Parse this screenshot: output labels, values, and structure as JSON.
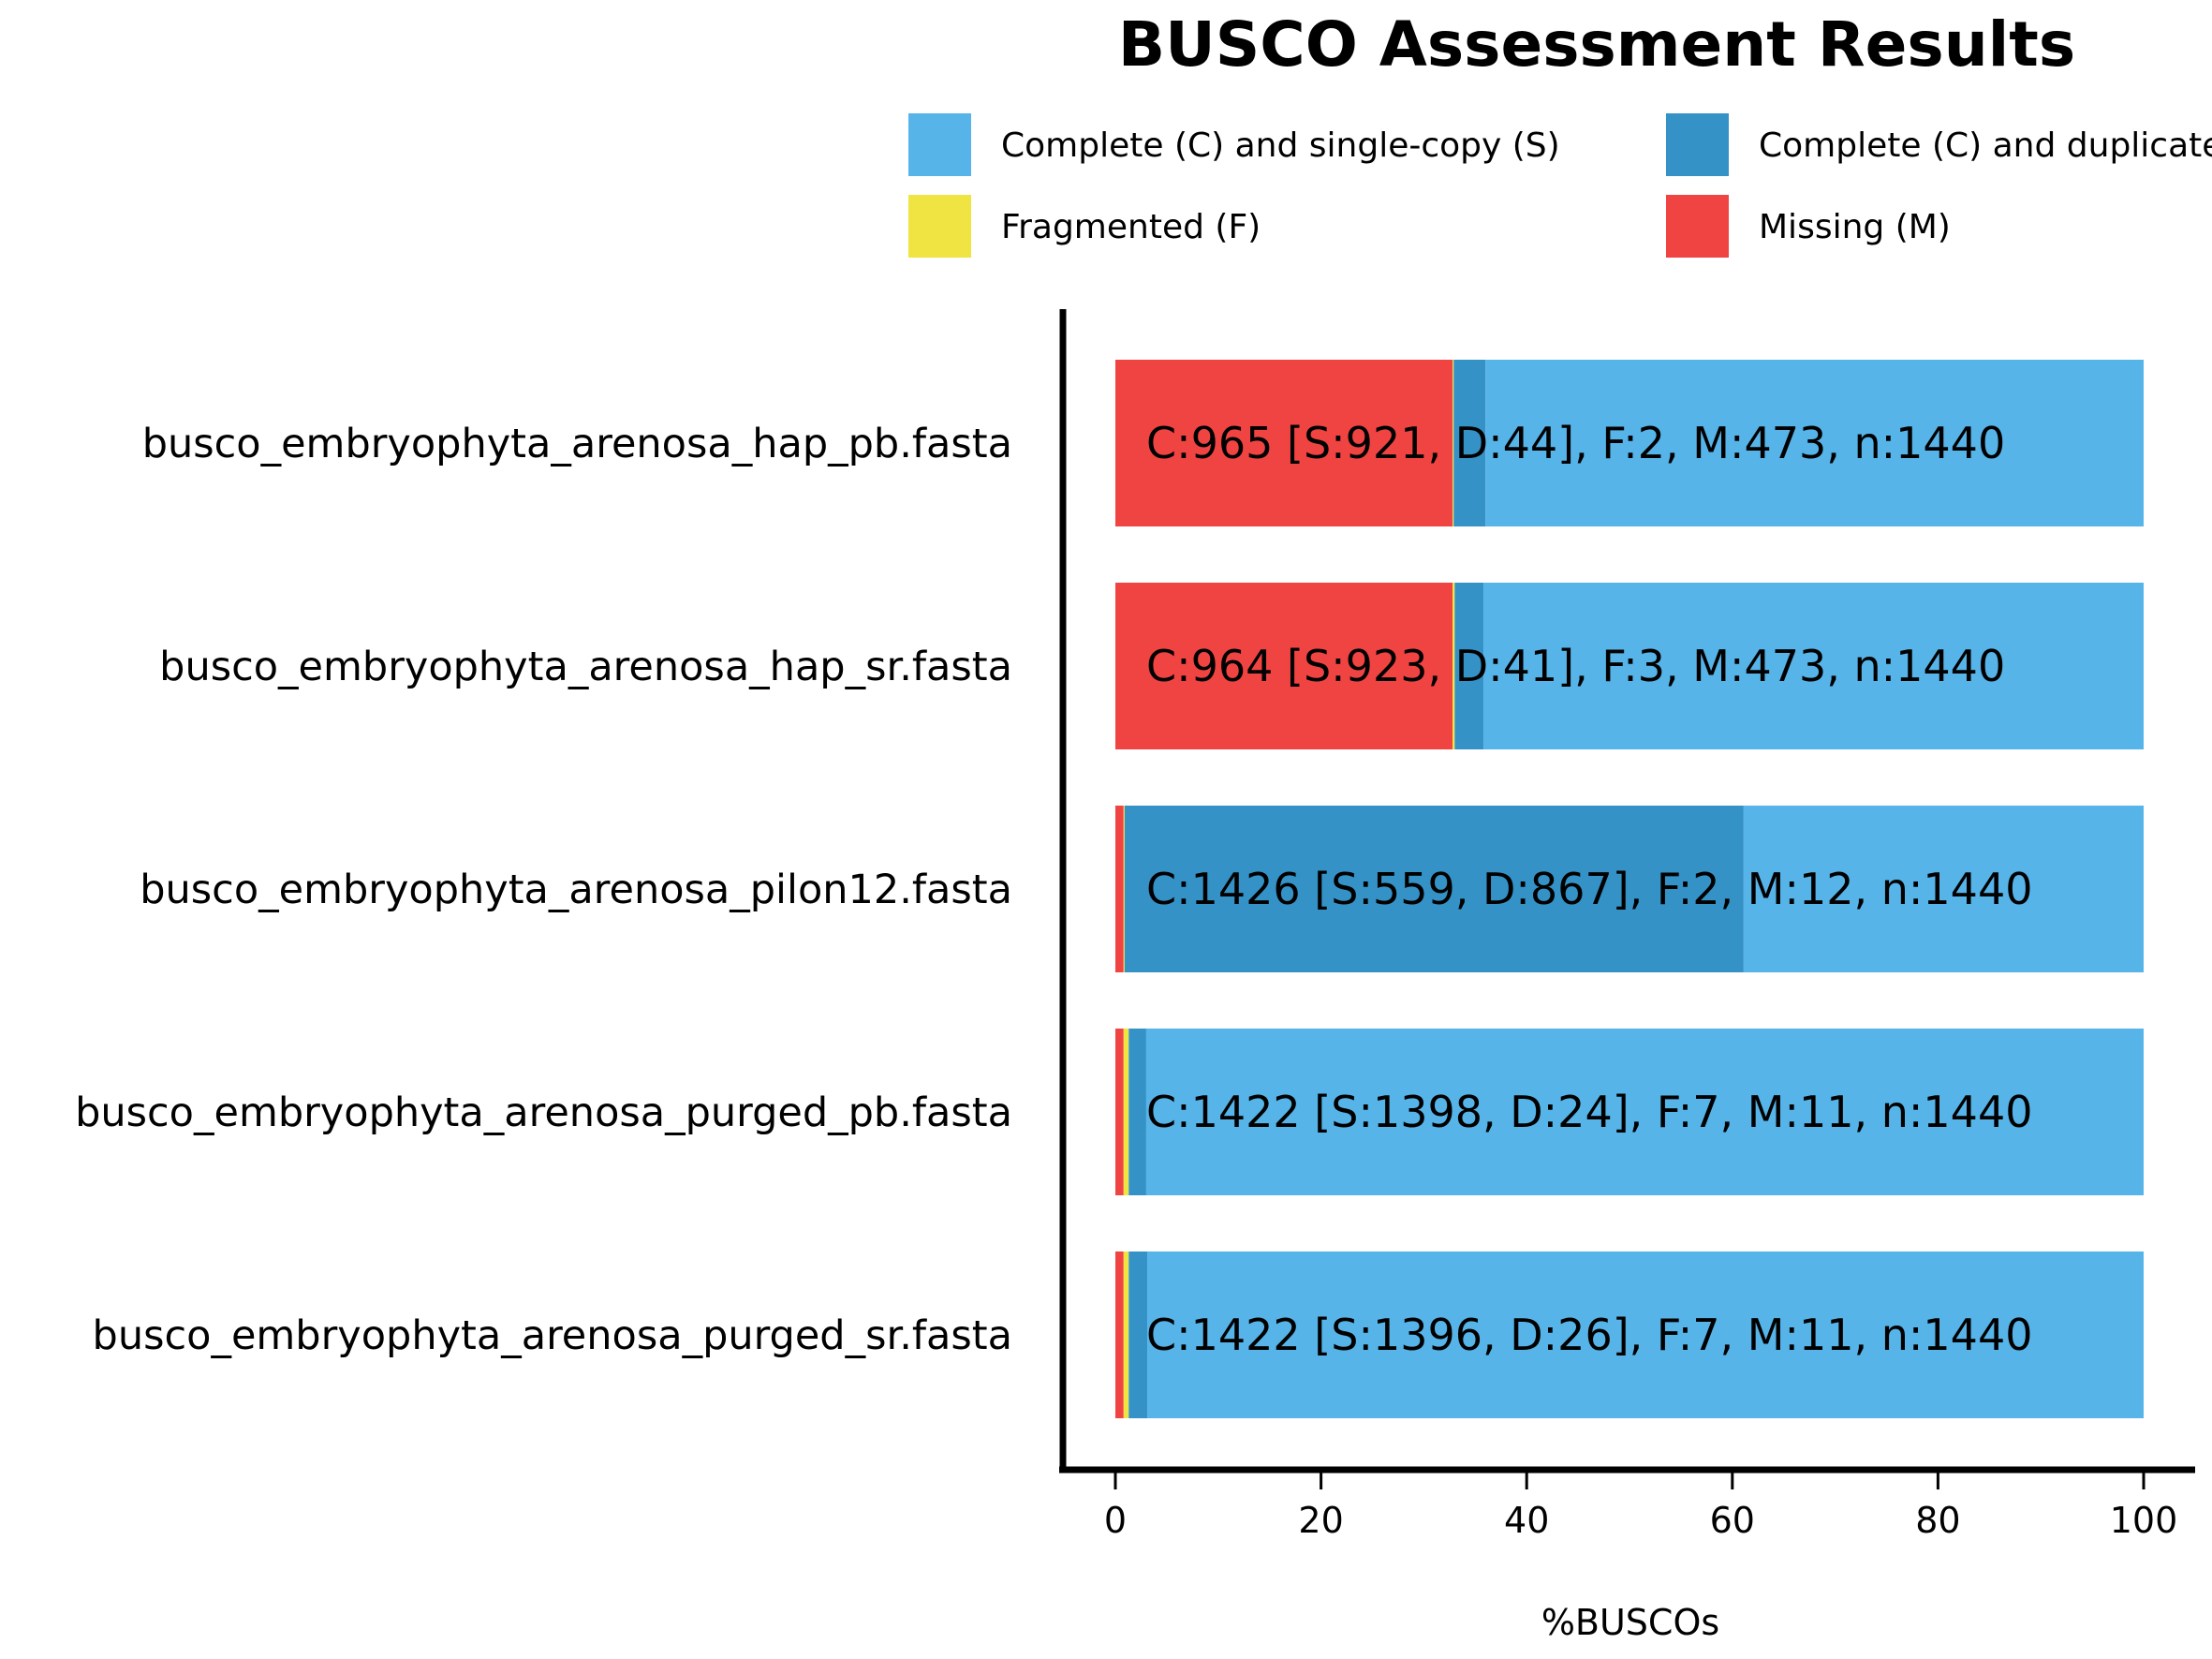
{
  "chart_data": {
    "type": "bar",
    "orientation": "horizontal",
    "stacked": true,
    "title": "BUSCO Assessment Results",
    "xlabel": "%BUSCOs",
    "ylabel": "",
    "xlim": [
      0,
      100
    ],
    "xticks": [
      0,
      20,
      40,
      60,
      80,
      100
    ],
    "grid": false,
    "legend_position": "top",
    "categories": [
      "busco_embryophyta_arenosa_hap_pb.fasta",
      "busco_embryophyta_arenosa_hap_sr.fasta",
      "busco_embryophyta_arenosa_pilon12.fasta",
      "busco_embryophyta_arenosa_purged_pb.fasta",
      "busco_embryophyta_arenosa_purged_sr.fasta"
    ],
    "series": [
      {
        "name": "Missing (M)",
        "color": "#f04442",
        "values": [
          32.8,
          32.8,
          0.8,
          0.8,
          0.8
        ]
      },
      {
        "name": "Fragmented (F)",
        "color": "#f0e442",
        "values": [
          0.1,
          0.2,
          0.1,
          0.5,
          0.5
        ]
      },
      {
        "name": "Complete (C) and duplicated (D)",
        "color": "#3492c7",
        "values": [
          3.1,
          2.8,
          60.2,
          1.7,
          1.8
        ]
      },
      {
        "name": "Complete (C) and single-copy (S)",
        "color": "#56b4e9",
        "values": [
          64.0,
          64.2,
          38.9,
          97.0,
          96.9
        ]
      }
    ],
    "legend_entries": [
      {
        "label": "Complete (C) and single-copy (S)",
        "color": "#56b4e9"
      },
      {
        "label": "Complete (C) and duplicated (D)",
        "color": "#3492c7"
      },
      {
        "label": "Fragmented (F)",
        "color": "#f0e442"
      },
      {
        "label": "Missing (M)",
        "color": "#f04442"
      }
    ],
    "bar_labels": [
      "C:965 [S:921, D:44], F:2, M:473, n:1440",
      "C:964 [S:923, D:41], F:3, M:473, n:1440",
      "C:1426 [S:559, D:867], F:2, M:12, n:1440",
      "C:1422 [S:1398, D:24], F:7, M:11, n:1440",
      "C:1422 [S:1396, D:26], F:7, M:11, n:1440"
    ]
  }
}
